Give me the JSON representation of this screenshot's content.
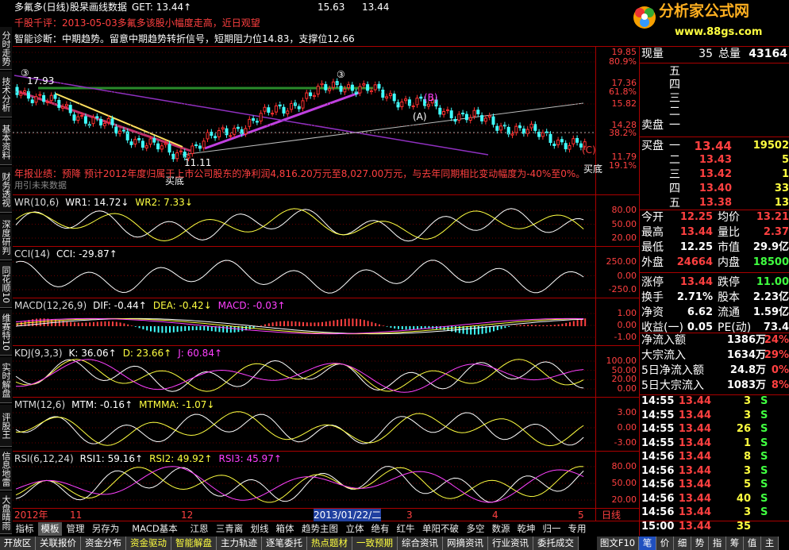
{
  "header": {
    "title": "多氟多(日线)",
    "subtitle": "股杲画线数据",
    "get": "GET: 13.44↑",
    "mark1": "15.63",
    "mark2": "13.44",
    "logo": "分析家公式网",
    "logo_url": "www.88gs.com"
  },
  "comment": "千股千评：2013-05-03多氟多该股小幅度走高，近日观望",
  "diagnosis": "智能诊断：中期趋势。留意中期趋势转折信号，短期阻力位14.83，支撑位12.66",
  "main_chart": {
    "labels": [
      "③",
      "17.93",
      "③",
      "(B)",
      "(A)",
      "(C)",
      "11.11",
      "买底",
      "买底"
    ],
    "notice": "年报业绩：预降 预计2012年度归属于上市公司股东的净利润4,816.20万元至8,027.00万元，与去年同期相比变动幅度为-40%至0%。",
    "watermark": "用引未来数据",
    "axis": [
      "19.85",
      "80.9%",
      "17.36",
      "61.8%",
      "15.82",
      "14.28",
      "38.2%",
      "11.79",
      "19.1%"
    ]
  },
  "panels": [
    {
      "title": "WR(10,6)",
      "values": [
        "WR1: 14.72↓",
        "WR2: 7.33↓"
      ],
      "axis": [
        "80.00",
        "50.00",
        "20.00"
      ]
    },
    {
      "title": "CCI(14)",
      "values": [
        "CCI: -29.87↑"
      ],
      "axis": [
        "250.00",
        "0.00",
        "-250.0"
      ]
    },
    {
      "title": "MACD(12,26,9)",
      "values": [
        "DIF: -0.44↑",
        "DEA: -0.42↓",
        "MACD: -0.03↑"
      ],
      "axis": [
        "1.00",
        "0.00",
        "-1.00"
      ]
    },
    {
      "title": "KDJ(9,3,3)",
      "values": [
        "K: 36.06↑",
        "D: 23.66↑",
        "J: 60.84↑"
      ],
      "axis": [
        "100.00",
        "50.00",
        "20.00",
        "0.00"
      ]
    },
    {
      "title": "MTM(12,6)",
      "values": [
        "MTM: -0.16↑",
        "MTMMA: -1.07↓"
      ],
      "axis": [
        "3.00",
        "0.00",
        "-3.00"
      ]
    },
    {
      "title": "RSI(6,12,24)",
      "values": [
        "RSI1: 59.16↑",
        "RSI2: 49.92↑",
        "RSI3: 45.97↑"
      ],
      "axis": [
        "80.00",
        "50.00",
        "20.00"
      ]
    }
  ],
  "x_axis": [
    "2012年",
    "11",
    "12",
    "2013/01/22/二",
    "3",
    "4",
    "5",
    "日线"
  ],
  "side_tabs": [
    "分时走势",
    "技术分析",
    "基本资料",
    "财务透视",
    "深度研判",
    "同花顺10",
    "维赛特10",
    "实时解盘",
    "评股王",
    "信息地雷",
    "大盘晴雨"
  ],
  "toolbar": [
    "指标",
    "模板",
    "管理",
    "另存为",
    "MACD基本",
    "江恩",
    "三青离",
    "划线",
    "箱体",
    "趋势主图",
    "立体",
    "绝有",
    "红牛",
    "单阳不破",
    "多空",
    "数源",
    "乾坤",
    "归一",
    "专用"
  ],
  "bottom_tabs": [
    "开放区",
    "关联报价",
    "资金分布",
    "资金驱动",
    "智能解盘",
    "主力轨迹",
    "逐笔委托",
    "热点题材",
    "一致预期",
    "综合资讯",
    "网摘资讯",
    "行业资讯",
    "委托成交"
  ],
  "bottom_right": [
    "图文F10",
    "笔",
    "价",
    "细",
    "势",
    "指",
    "筹",
    "值",
    "主"
  ],
  "quote": {
    "now_label": "现量",
    "now": "35",
    "total_label": "总量",
    "total": "43164",
    "sell_label": "卖盘",
    "sell_levels": [
      "五",
      "四",
      "三",
      "二",
      "一"
    ],
    "buy_label": "买盘",
    "buy": [
      [
        "一",
        "13.44",
        "19502"
      ],
      [
        "二",
        "13.43",
        "5"
      ],
      [
        "三",
        "13.42",
        "1"
      ],
      [
        "四",
        "13.40",
        "33"
      ],
      [
        "五",
        "13.38",
        "13"
      ]
    ],
    "stats": [
      [
        "今开",
        "12.25",
        "均价",
        "13.21"
      ],
      [
        "最高",
        "13.44",
        "量比",
        "2.37"
      ],
      [
        "最低",
        "12.25",
        "市值",
        "29.9亿"
      ],
      [
        "外盘",
        "24664",
        "内盘",
        "18500"
      ],
      [
        "涨停",
        "13.44",
        "跌停",
        "11.00"
      ],
      [
        "换手",
        "2.71%",
        "股本",
        "2.23亿"
      ],
      [
        "净资",
        "6.62",
        "流通",
        "1.59亿"
      ],
      [
        "收益(一)",
        "0.05",
        "PE(动)",
        "73.4"
      ]
    ],
    "flows": [
      [
        "净流入额",
        "1386万",
        "24%"
      ],
      [
        "大宗流入",
        "1634万",
        "29%"
      ],
      [
        "5日净流入额",
        "24.8万",
        "0%"
      ],
      [
        "5日大宗流入",
        "1083万",
        "8%"
      ]
    ],
    "trades": [
      [
        "14:55",
        "13.44",
        "3",
        "S"
      ],
      [
        "14:55",
        "13.44",
        "3",
        "S"
      ],
      [
        "14:55",
        "13.44",
        "26",
        "S"
      ],
      [
        "14:55",
        "13.44",
        "1",
        "S"
      ],
      [
        "14:56",
        "13.44",
        "8",
        "S"
      ],
      [
        "14:56",
        "13.44",
        "3",
        "S"
      ],
      [
        "14:56",
        "13.44",
        "5",
        "S"
      ],
      [
        "14:56",
        "13.44",
        "40",
        "S"
      ],
      [
        "14:56",
        "13.44",
        "3",
        "S"
      ],
      [
        "15:00",
        "13.44",
        "35"
      ]
    ]
  }
}
